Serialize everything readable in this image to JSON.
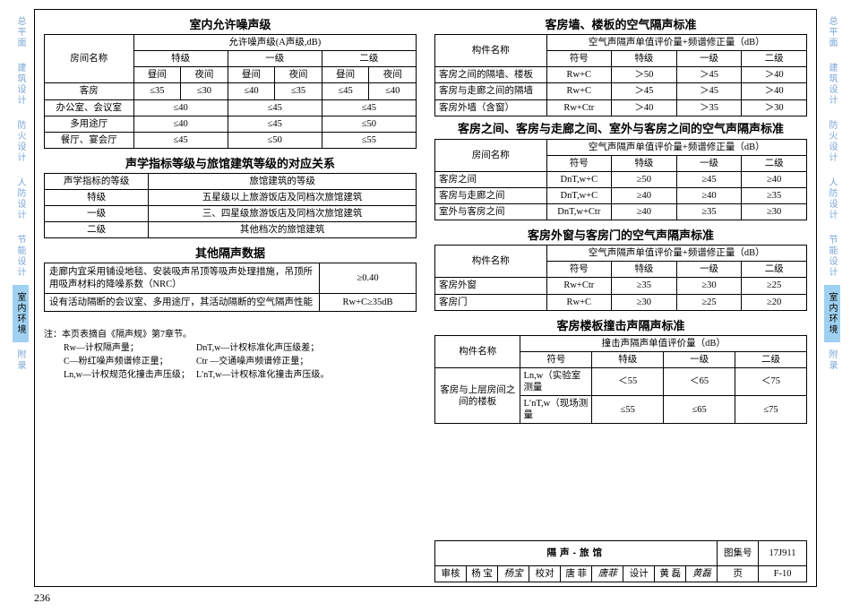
{
  "tabs": [
    "总平面",
    "建筑设计",
    "防火设计",
    "人防设计",
    "节能设计",
    "室内环境",
    "附录"
  ],
  "active_tab_index": 5,
  "page_number": "236",
  "t1": {
    "title": "室内允许噪声级",
    "h_room": "房间名称",
    "h_allow": "允许噪声级(A声级,dB)",
    "h_grades": [
      "特级",
      "一级",
      "二级"
    ],
    "h_time": [
      "昼间",
      "夜间",
      "昼间",
      "夜间",
      "昼间",
      "夜间"
    ],
    "rows": [
      {
        "name": "客房",
        "v": [
          "≤35",
          "≤30",
          "≤40",
          "≤35",
          "≤45",
          "≤40"
        ]
      },
      {
        "name": "办公室、会议室",
        "v": [
          "≤40",
          "≤45",
          "≤45"
        ],
        "span": 2
      },
      {
        "name": "多用途厅",
        "v": [
          "≤40",
          "≤45",
          "≤50"
        ],
        "span": 2
      },
      {
        "name": "餐厅、宴会厅",
        "v": [
          "≤45",
          "≤50",
          "≤55"
        ],
        "span": 2
      }
    ]
  },
  "t2": {
    "title": "声学指标等级与旅馆建筑等级的对应关系",
    "h1": "声学指标的等级",
    "h2": "旅馆建筑的等级",
    "rows": [
      [
        "特级",
        "五星级以上旅游饭店及同档次旅馆建筑"
      ],
      [
        "一级",
        "三、四星级旅游饭店及同档次旅馆建筑"
      ],
      [
        "二级",
        "其他档次的旅馆建筑"
      ]
    ]
  },
  "t3": {
    "title": "其他隔声数据",
    "rows": [
      [
        "走廊内宜采用铺设地毯、安装吸声吊顶等吸声处理措施，吊顶所用吸声材料的降噪系数（NRC）",
        "≥0.40"
      ],
      [
        "设有活动隔断的会议室、多用途厅，其活动隔断的空气隔声性能",
        "Rw+C≥35dB"
      ]
    ]
  },
  "notes": {
    "head": "注：本页表摘自《隔声规》第7章节。",
    "lines": [
      [
        "Rw—计权隔声量；",
        "DnT,w—计权标准化声压级差；"
      ],
      [
        "C—粉红噪声频谱修正量；",
        "Ctr —交通噪声频谱修正量；"
      ],
      [
        "Ln,w—计权规范化撞击声压级；",
        "L′nT,w—计权标准化撞击声压级。"
      ]
    ]
  },
  "t4": {
    "title": "客房墙、楼板的空气隔声标准",
    "h_comp": "构件名称",
    "h_metric": "空气声隔声单值评价量+频谱修正量（dB）",
    "h_cols": [
      "符号",
      "特级",
      "一级",
      "二级"
    ],
    "rows": [
      [
        "客房之间的隔墙、楼板",
        "Rw+C",
        "＞50",
        "＞45",
        "＞40"
      ],
      [
        "客房与走廊之间的隔墙",
        "Rw+C",
        "＞45",
        "＞45",
        "＞40"
      ],
      [
        "客房外墙（含窗）",
        "Rw+Ctr",
        "＞40",
        "＞35",
        "＞30"
      ]
    ]
  },
  "t5": {
    "title": "客房之间、客房与走廊之间、室外与客房之间的空气声隔声标准",
    "h_room": "房间名称",
    "h_metric": "空气声隔声单值评价量+频谱修正量（dB）",
    "h_cols": [
      "符号",
      "特级",
      "一级",
      "二级"
    ],
    "rows": [
      [
        "客房之间",
        "DnT,w+C",
        "≥50",
        "≥45",
        "≥40"
      ],
      [
        "客房与走廊之间",
        "DnT,w+C",
        "≥40",
        "≥40",
        "≥35"
      ],
      [
        "室外与客房之间",
        "DnT,w+Ctr",
        "≥40",
        "≥35",
        "≥30"
      ]
    ]
  },
  "t6": {
    "title": "客房外窗与客房门的空气声隔声标准",
    "h_comp": "构件名称",
    "h_metric": "空气声隔声单值评价量+频谱修正量（dB）",
    "h_cols": [
      "符号",
      "特级",
      "一级",
      "二级"
    ],
    "rows": [
      [
        "客房外窗",
        "Rw+Ctr",
        "≥35",
        "≥30",
        "≥25"
      ],
      [
        "客房门",
        "Rw+C",
        "≥30",
        "≥25",
        "≥20"
      ]
    ]
  },
  "t7": {
    "title": "客房楼板撞击声隔声标准",
    "h_comp": "构件名称",
    "h_metric": "撞击声隔声单值评价量（dB）",
    "h_cols": [
      "符号",
      "特级",
      "一级",
      "二级"
    ],
    "rows": [
      {
        "name": "客房与上层房间之间的楼板",
        "sym": "Ln,w（实验室测量",
        "v": [
          "＜55",
          "＜65",
          "＜75"
        ]
      },
      {
        "sym": "L′nT,w（现场测量",
        "v": [
          "≤55",
          "≤65",
          "≤75"
        ]
      }
    ]
  },
  "footer": {
    "doc_title": "隔声-旅馆",
    "set_label": "图集号",
    "set_no": "17J911",
    "check": "审核",
    "check_name": "杨 宝",
    "check_sig": "杨宝",
    "proof": "校对",
    "proof_name": "唐 菲",
    "proof_sig": "唐菲",
    "design": "设计",
    "design_name": "黄 磊",
    "design_sig": "黄磊",
    "page_label": "页",
    "page_no": "F-10"
  }
}
